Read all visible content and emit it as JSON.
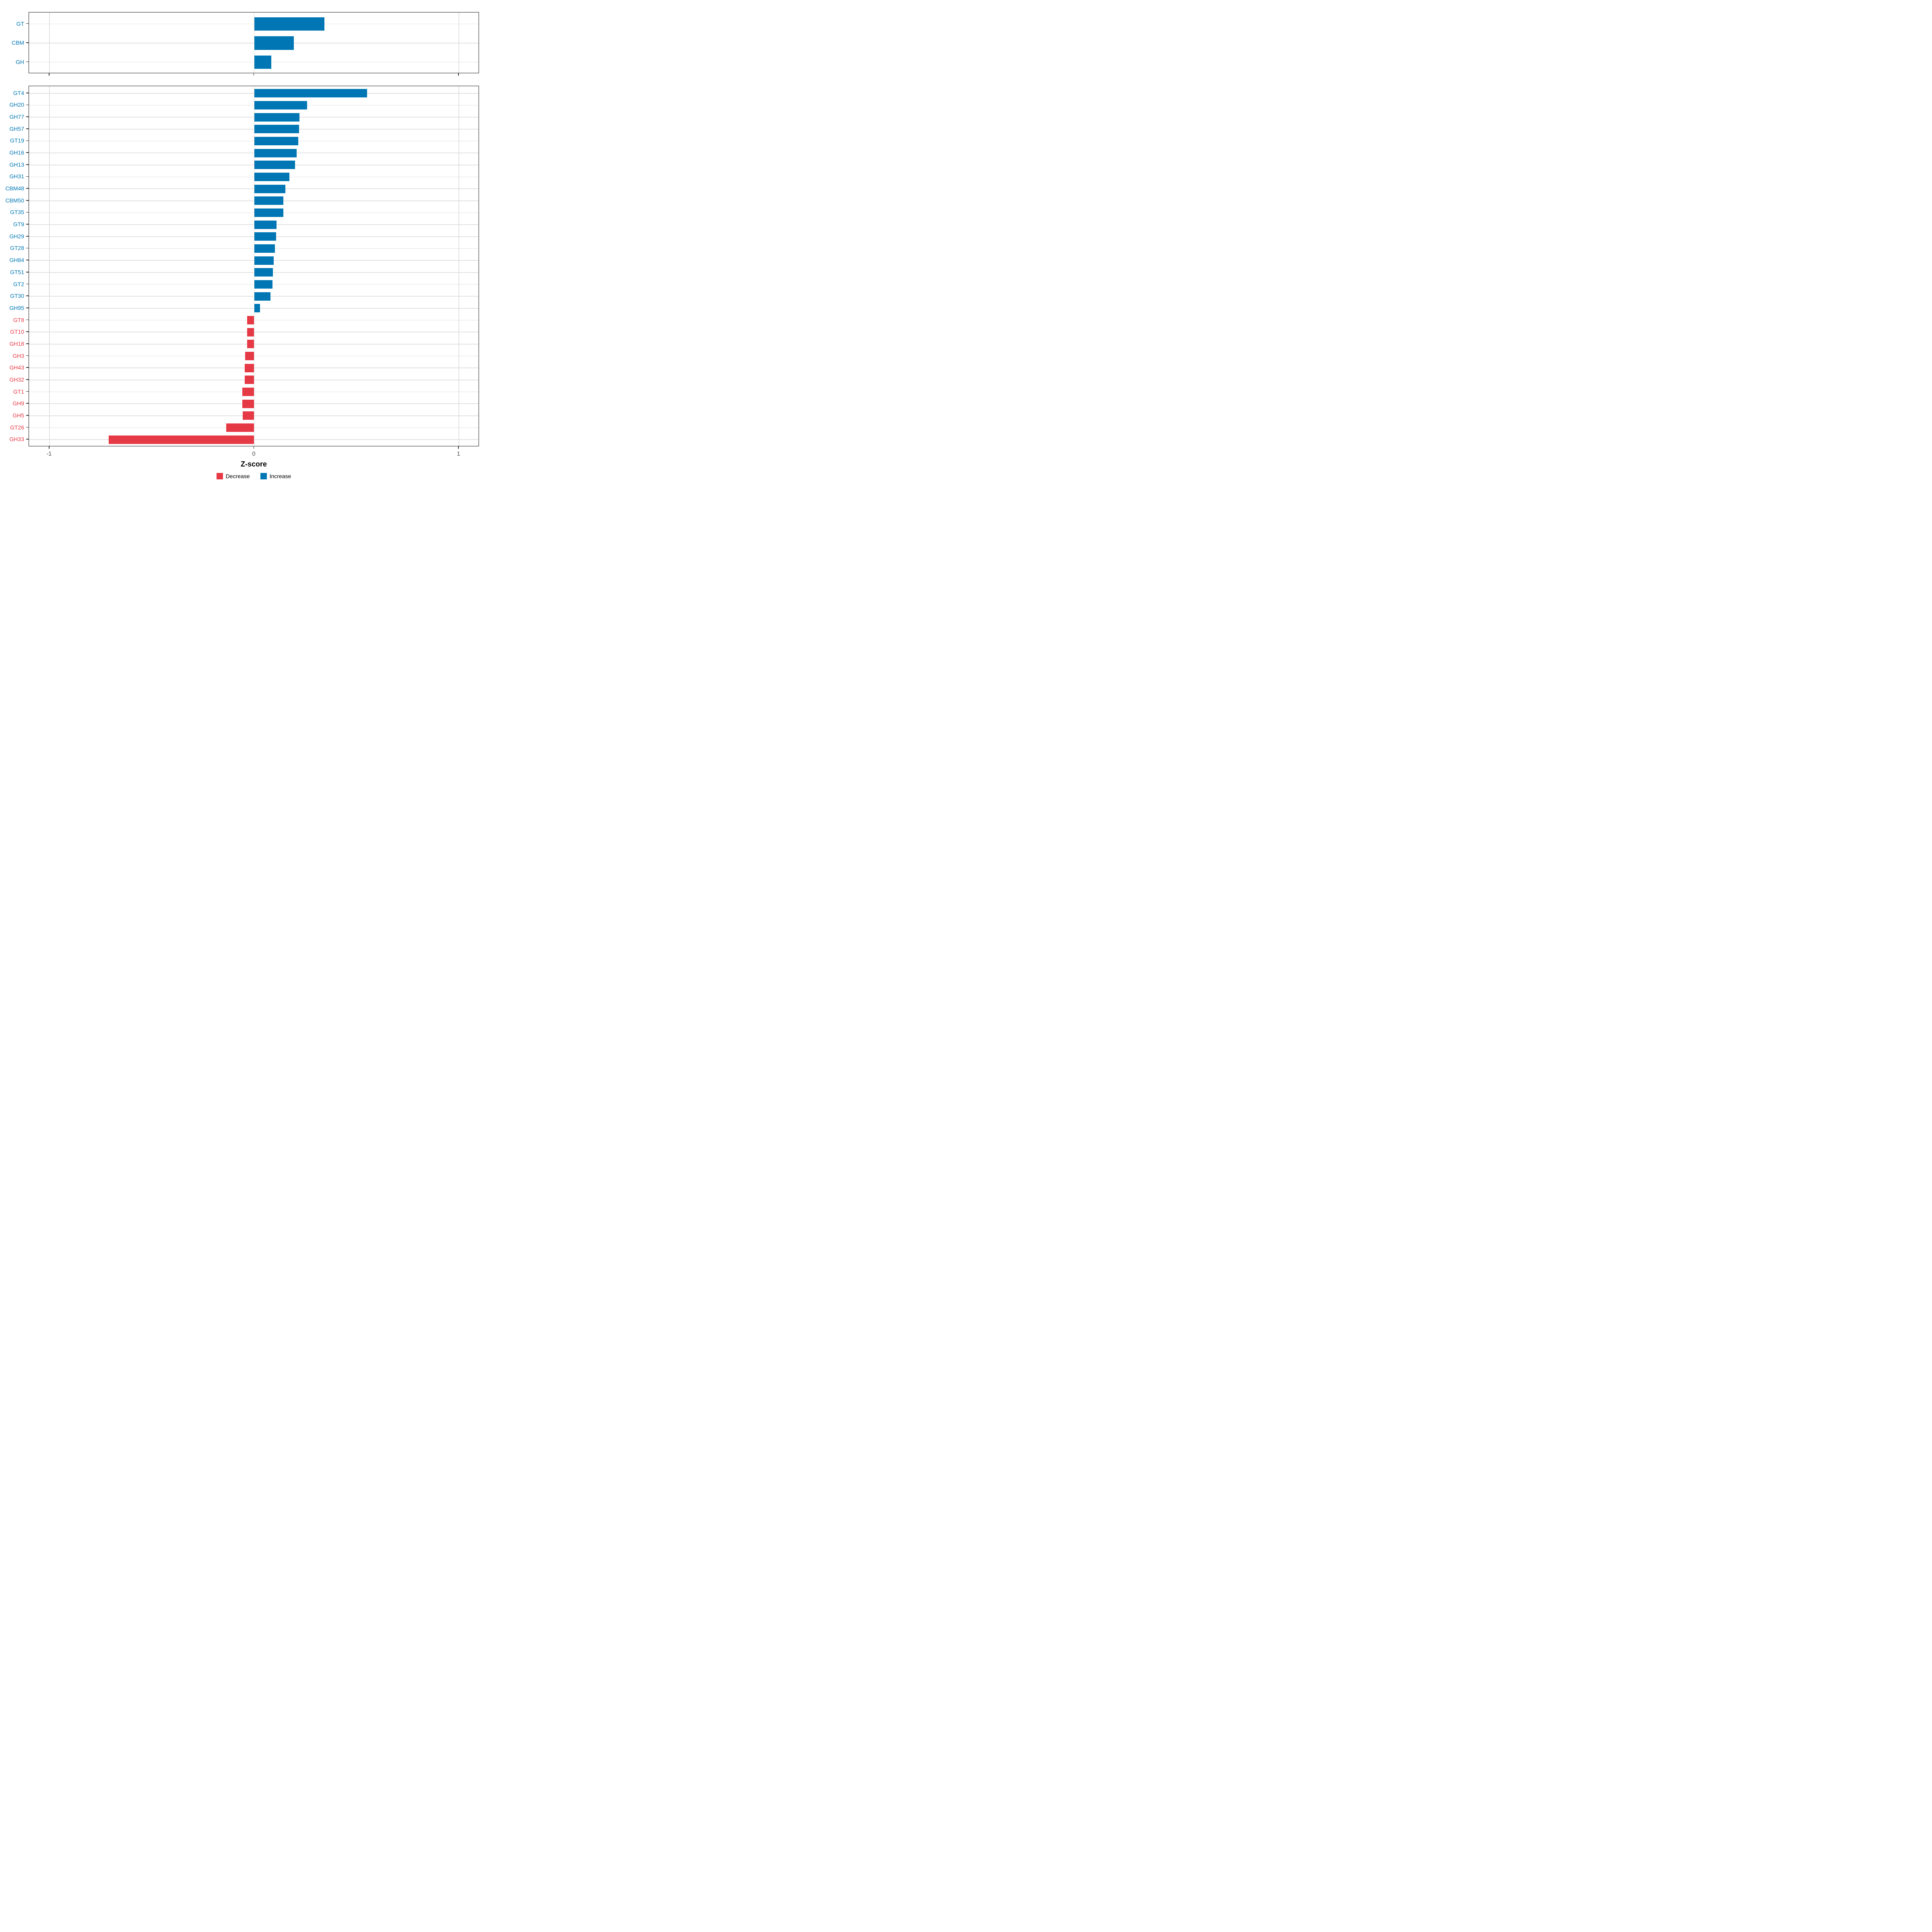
{
  "axis": {
    "label": "Z-score",
    "tick_labels": [
      "-1",
      "0",
      "1"
    ],
    "tick_values": [
      -1,
      0,
      1
    ],
    "xlim": [
      -1.1,
      1.1
    ]
  },
  "legend": {
    "items": [
      {
        "label": "Decrease",
        "color": "#E63946"
      },
      {
        "label": "Increase",
        "color": "#0077B4"
      }
    ]
  },
  "colors": {
    "increase": "#0077B4",
    "decrease": "#E63946",
    "gridline": "#e2e2e2",
    "panel_border": "#1a1a1a",
    "tick_text": "#4d4d4d"
  },
  "chart_data": [
    {
      "type": "bar",
      "orientation": "horizontal",
      "panel": "top",
      "xlabel": "Z-score",
      "xlim": [
        -1.1,
        1.1
      ],
      "grid": "on",
      "categories": [
        "GT",
        "CBM",
        "GH"
      ],
      "values": [
        0.343,
        0.193,
        0.083
      ],
      "directions": [
        "increase",
        "increase",
        "increase"
      ]
    },
    {
      "type": "bar",
      "orientation": "horizontal",
      "panel": "bottom",
      "xlabel": "Z-score",
      "xlim": [
        -1.1,
        1.1
      ],
      "grid": "on",
      "categories": [
        "GT4",
        "GH20",
        "GH77",
        "GH57",
        "GT19",
        "GH16",
        "GH13",
        "GH31",
        "CBM48",
        "CBM50",
        "GT35",
        "GT9",
        "GH29",
        "GT28",
        "GH84",
        "GT51",
        "GT2",
        "GT30",
        "GH95",
        "GT8",
        "GT10",
        "GH18",
        "GH3",
        "GH43",
        "GH32",
        "GT1",
        "GH9",
        "GH5",
        "GT26",
        "GH33"
      ],
      "values": [
        0.551,
        0.258,
        0.221,
        0.22,
        0.215,
        0.208,
        0.2,
        0.173,
        0.152,
        0.143,
        0.142,
        0.109,
        0.108,
        0.101,
        0.096,
        0.092,
        0.089,
        0.079,
        0.028,
        -0.034,
        -0.034,
        -0.034,
        -0.045,
        -0.047,
        -0.047,
        -0.058,
        -0.058,
        -0.056,
        -0.137,
        -0.71
      ],
      "directions": [
        "increase",
        "increase",
        "increase",
        "increase",
        "increase",
        "increase",
        "increase",
        "increase",
        "increase",
        "increase",
        "increase",
        "increase",
        "increase",
        "increase",
        "increase",
        "increase",
        "increase",
        "increase",
        "increase",
        "decrease",
        "decrease",
        "decrease",
        "decrease",
        "decrease",
        "decrease",
        "decrease",
        "decrease",
        "decrease",
        "decrease",
        "decrease"
      ]
    }
  ]
}
